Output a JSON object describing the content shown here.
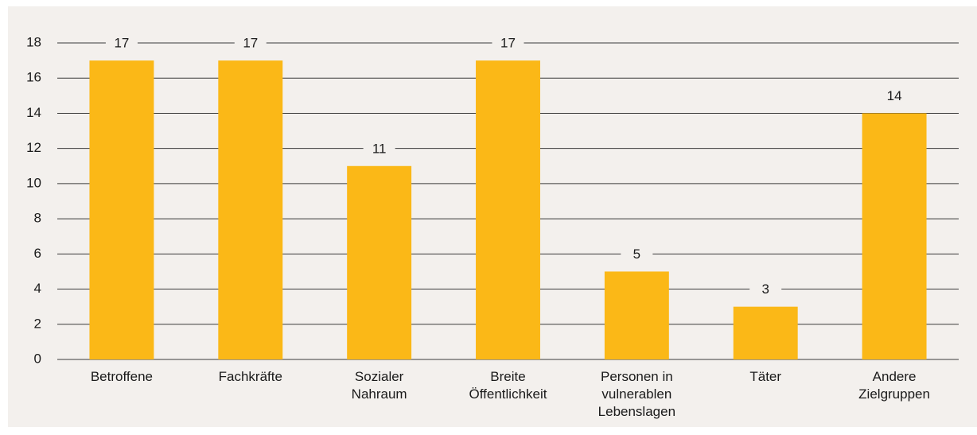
{
  "chart_data": {
    "type": "bar",
    "categories": [
      [
        "Betroffene"
      ],
      [
        "Fachkräfte"
      ],
      [
        "Sozialer",
        "Nahraum"
      ],
      [
        "Breite",
        "Öffentlichkeit"
      ],
      [
        "Personen in",
        "vulnerablen",
        "Lebenslagen"
      ],
      [
        "Täter"
      ],
      [
        "Andere",
        "Zielgruppen"
      ]
    ],
    "values": [
      17,
      17,
      11,
      17,
      5,
      3,
      14
    ],
    "color": "#fbb817",
    "ylim": [
      0,
      18
    ],
    "yticks": [
      0,
      2,
      4,
      6,
      8,
      10,
      12,
      14,
      16,
      18
    ],
    "grid": true
  }
}
